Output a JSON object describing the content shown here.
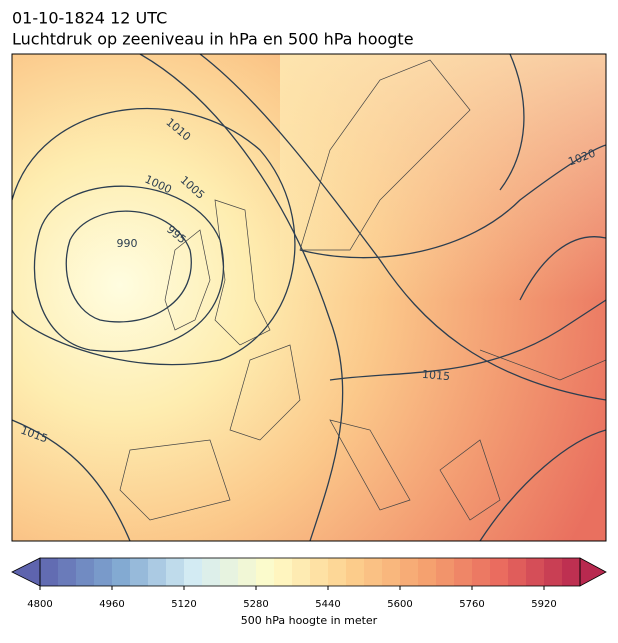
{
  "header": {
    "title": "01-10-1824 12 UTC",
    "subtitle": "Luchtdruk op zeeniveau in hPa en 500 hPa hoogte"
  },
  "isobar_labels": [
    "1010",
    "1005",
    "1000",
    "995",
    "990",
    "1020",
    "1015",
    "1015"
  ],
  "colorbar": {
    "label": "500 hPa hoogte in meter",
    "lim": [
      4800,
      6000
    ],
    "ticks": [
      4800,
      4960,
      5120,
      5280,
      5440,
      5600,
      5760,
      5920
    ],
    "colormap": [
      "#5e64ae",
      "#7fa6d0",
      "#d4ecf4",
      "#fffcc8",
      "#fdd08e",
      "#f5a26f",
      "#e9695e",
      "#b8294f"
    ]
  }
}
